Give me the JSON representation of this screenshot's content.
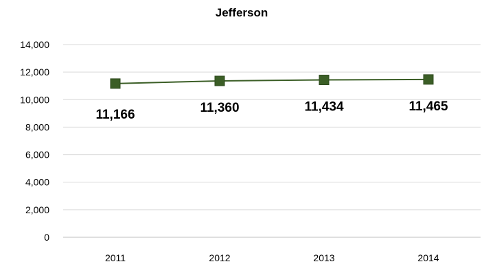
{
  "chart_data": {
    "type": "line",
    "title": "Jefferson",
    "xlabel": "",
    "ylabel": "",
    "categories": [
      "2011",
      "2012",
      "2013",
      "2014"
    ],
    "series": [
      {
        "values": [
          11166,
          11360,
          11434,
          11465
        ],
        "labels": [
          "11,166",
          "11,360",
          "11,434",
          "11,465"
        ],
        "color": "#3b5e26",
        "marker": "square"
      }
    ],
    "ylim": [
      0,
      14000
    ],
    "yticks": [
      0,
      2000,
      4000,
      6000,
      8000,
      10000,
      12000,
      14000
    ],
    "ytick_labels": [
      "0",
      "2,000",
      "4,000",
      "6,000",
      "8,000",
      "10,000",
      "12,000",
      "14,000"
    ],
    "grid": true,
    "legend": "none"
  }
}
